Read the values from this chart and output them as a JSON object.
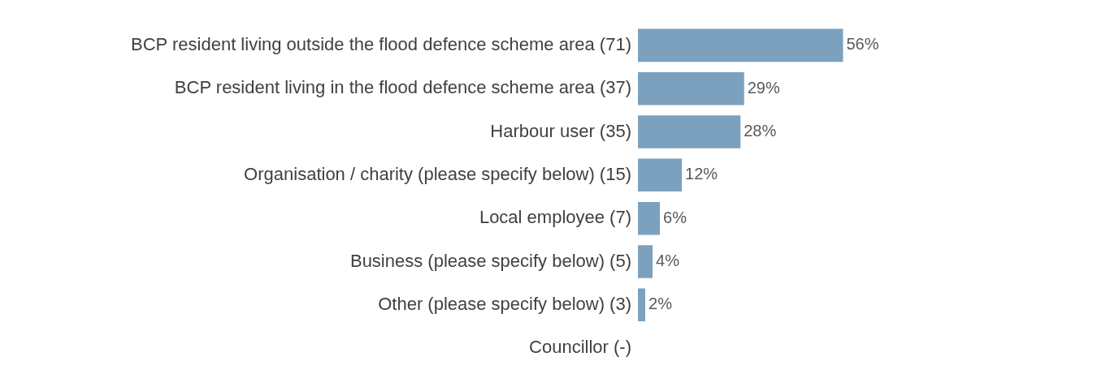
{
  "chart_data": {
    "type": "bar",
    "orientation": "horizontal",
    "categories": [
      "BCP resident living outside the flood defence scheme area (71)",
      "BCP resident living in the flood defence scheme area (37)",
      "Harbour user (35)",
      "Organisation / charity (please specify below) (15)",
      "Local employee (7)",
      "Business (please specify below) (5)",
      "Other (please specify below) (3)",
      "Councillor (-)"
    ],
    "values": [
      56,
      29,
      28,
      12,
      6,
      4,
      2,
      null
    ],
    "value_labels": [
      "56%",
      "29%",
      "28%",
      "12%",
      "6%",
      "4%",
      "2%",
      null
    ],
    "color": "#7ba1bf",
    "grid": false,
    "legend": false
  }
}
